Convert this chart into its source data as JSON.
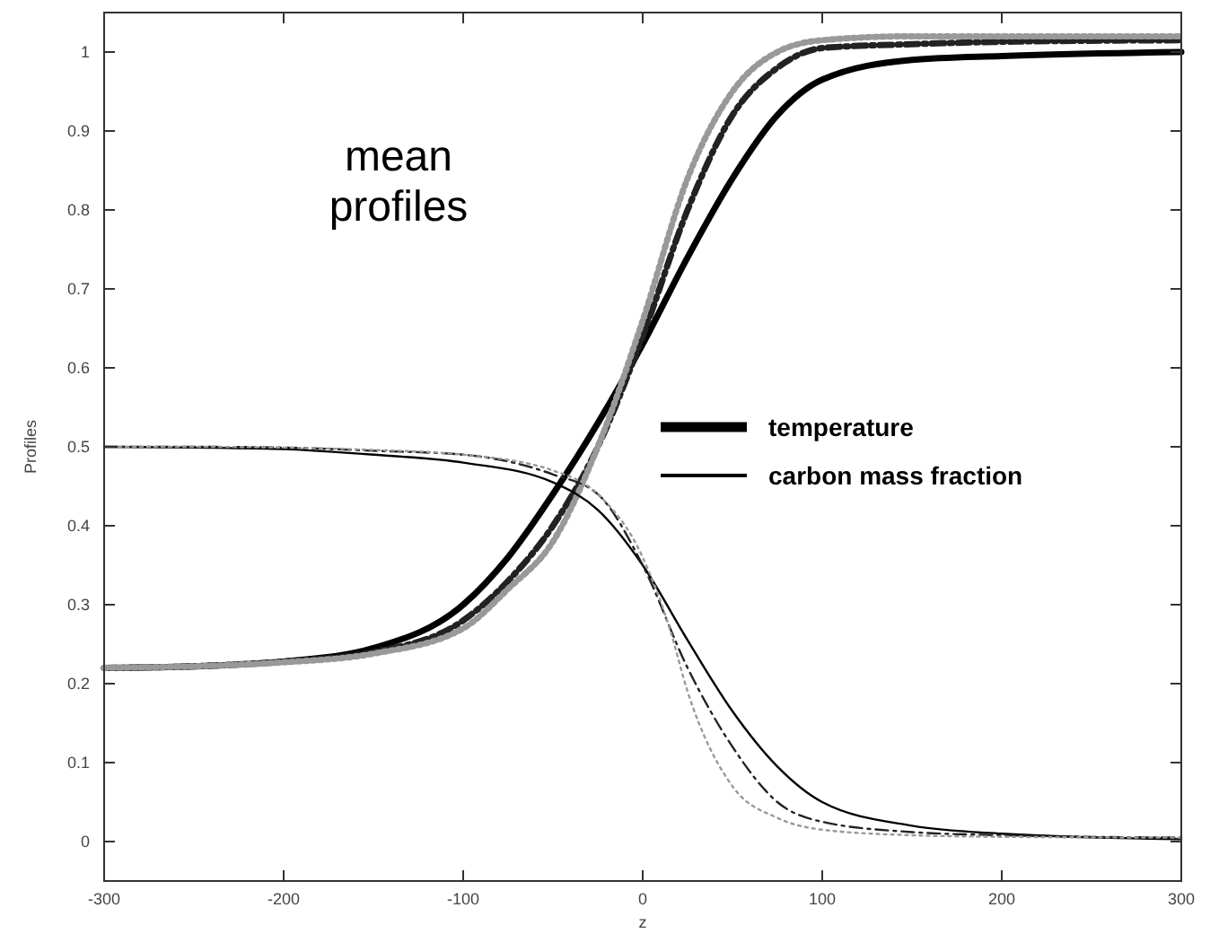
{
  "chart_data": {
    "type": "line",
    "xlabel": "z",
    "ylabel": "Profiles",
    "xlim": [
      -300,
      300
    ],
    "ylim": [
      -0.05,
      1.05
    ],
    "xticks": [
      -300,
      -200,
      -100,
      0,
      100,
      200,
      300
    ],
    "yticks": [
      0,
      0.1,
      0.2,
      0.3,
      0.4,
      0.5,
      0.6,
      0.7,
      0.8,
      0.9,
      1
    ],
    "grid": false,
    "legend": "right",
    "annotations": [
      "mean profiles"
    ],
    "series": [
      {
        "name": "temperature",
        "color": "#000000",
        "line_style": "solid",
        "x": [
          -300,
          -250,
          -200,
          -150,
          -100,
          -75,
          -50,
          -25,
          0,
          25,
          50,
          75,
          100,
          150,
          200,
          300
        ],
        "values": [
          0.22,
          0.222,
          0.228,
          0.245,
          0.3,
          0.36,
          0.44,
          0.53,
          0.63,
          0.74,
          0.84,
          0.92,
          0.965,
          0.99,
          0.995,
          1.0
        ]
      },
      {
        "color": "#222222",
        "line_style": "dashed",
        "x": [
          -300,
          -250,
          -200,
          -150,
          -100,
          -75,
          -50,
          -25,
          0,
          25,
          50,
          75,
          100,
          150,
          200,
          300
        ],
        "values": [
          0.22,
          0.222,
          0.228,
          0.24,
          0.28,
          0.33,
          0.4,
          0.5,
          0.64,
          0.8,
          0.92,
          0.98,
          1.005,
          1.01,
          1.013,
          1.015
        ]
      },
      {
        "color": "#999999",
        "line_style": "dotted",
        "x": [
          -300,
          -250,
          -200,
          -150,
          -100,
          -75,
          -50,
          -25,
          0,
          25,
          50,
          75,
          100,
          150,
          200,
          300
        ],
        "values": [
          0.22,
          0.222,
          0.227,
          0.238,
          0.27,
          0.32,
          0.38,
          0.5,
          0.66,
          0.84,
          0.95,
          1.0,
          1.015,
          1.02,
          1.02,
          1.02
        ]
      },
      {
        "name": "carbon mass fraction",
        "color": "#000000",
        "line_style": "solid",
        "x": [
          -300,
          -250,
          -200,
          -150,
          -100,
          -50,
          -25,
          0,
          25,
          50,
          75,
          100,
          150,
          200,
          300
        ],
        "values": [
          0.5,
          0.499,
          0.497,
          0.49,
          0.48,
          0.455,
          0.42,
          0.35,
          0.255,
          0.165,
          0.095,
          0.05,
          0.02,
          0.01,
          0.003
        ]
      },
      {
        "color": "#222222",
        "line_style": "dashed",
        "x": [
          -300,
          -250,
          -200,
          -150,
          -100,
          -50,
          -25,
          0,
          25,
          50,
          75,
          100,
          150,
          200,
          300
        ],
        "values": [
          0.5,
          0.5,
          0.499,
          0.495,
          0.49,
          0.465,
          0.44,
          0.35,
          0.22,
          0.12,
          0.05,
          0.025,
          0.012,
          0.008,
          0.005
        ]
      },
      {
        "color": "#999999",
        "line_style": "dotted",
        "x": [
          -300,
          -250,
          -200,
          -150,
          -100,
          -50,
          -25,
          0,
          15,
          25,
          50,
          75,
          100,
          150,
          200,
          300
        ],
        "values": [
          0.5,
          0.5,
          0.499,
          0.496,
          0.49,
          0.47,
          0.44,
          0.36,
          0.27,
          0.19,
          0.07,
          0.03,
          0.015,
          0.008,
          0.006,
          0.005
        ]
      }
    ]
  }
}
